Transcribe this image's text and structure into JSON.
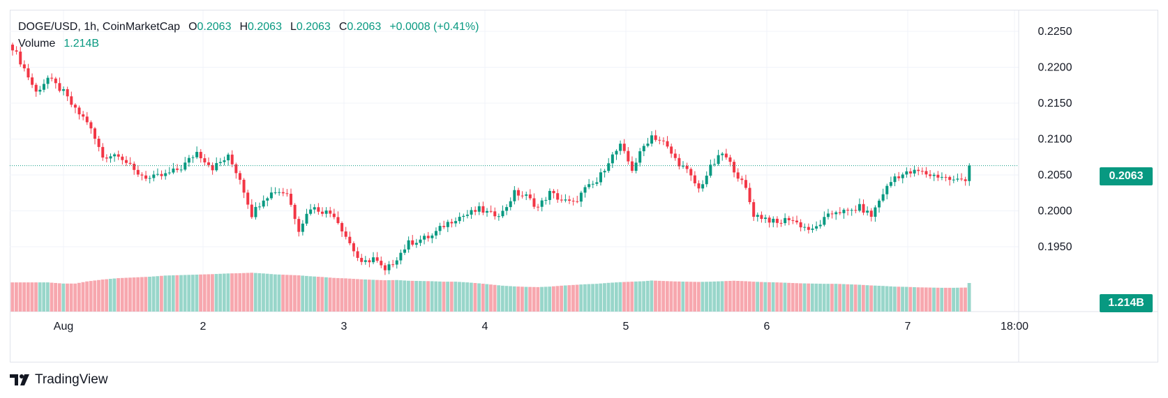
{
  "header": {
    "symbol": "DOGE/USD, 1h, CoinMarketCap",
    "open_label": "O",
    "open_value": "0.2063",
    "high_label": "H",
    "high_value": "0.2063",
    "low_label": "L",
    "low_value": "0.2063",
    "close_label": "C",
    "close_value": "0.2063",
    "change": "+0.0008 (+0.41%)",
    "volume_label": "Volume",
    "volume_value": "1.214B"
  },
  "price_axis": {
    "ticks": [
      "0.2250",
      "0.2200",
      "0.2150",
      "0.2100",
      "0.2050",
      "0.2000",
      "0.1950"
    ],
    "current_price_tag": "0.2063",
    "current_volume_tag": "1.214B"
  },
  "time_axis": {
    "ticks": [
      "Aug",
      "2",
      "3",
      "4",
      "5",
      "6",
      "7",
      "18:00"
    ]
  },
  "footer": {
    "brand": "TradingView",
    "logo": "tradingview-logo-icon"
  },
  "colors": {
    "up": "#089981",
    "down": "#f23645",
    "volume_up": "#98d6ca",
    "volume_down": "#f7a7ae",
    "grid": "#f0f3fa",
    "price_line": "#089981"
  },
  "chart_data": {
    "type": "candlestick",
    "interval": "1h",
    "price_range": [
      0.1925,
      0.2265
    ],
    "volume_range_B": [
      0,
      1.6
    ],
    "current_price": 0.2063,
    "current_volume_B": 1.214,
    "anchors": [
      [
        0,
        0.2228,
        1.24
      ],
      [
        3,
        0.2198,
        1.24
      ],
      [
        6,
        0.2165,
        1.24
      ],
      [
        9,
        0.2185,
        1.24
      ],
      [
        13,
        0.2165,
        1.19
      ],
      [
        16,
        0.214,
        1.19
      ],
      [
        19,
        0.2125,
        1.28
      ],
      [
        23,
        0.2075,
        1.36
      ],
      [
        27,
        0.208,
        1.42
      ],
      [
        31,
        0.2055,
        1.45
      ],
      [
        35,
        0.2045,
        1.48
      ],
      [
        39,
        0.205,
        1.53
      ],
      [
        43,
        0.206,
        1.55
      ],
      [
        47,
        0.2082,
        1.57
      ],
      [
        51,
        0.206,
        1.59
      ],
      [
        55,
        0.2075,
        1.62
      ],
      [
        58,
        0.2045,
        1.63
      ],
      [
        61,
        0.1995,
        1.65
      ],
      [
        64,
        0.2018,
        1.62
      ],
      [
        67,
        0.2028,
        1.58
      ],
      [
        70,
        0.2025,
        1.56
      ],
      [
        73,
        0.1975,
        1.54
      ],
      [
        76,
        0.2005,
        1.5
      ],
      [
        79,
        0.2,
        1.47
      ],
      [
        82,
        0.1995,
        1.43
      ],
      [
        85,
        0.1965,
        1.41
      ],
      [
        87,
        0.1945,
        1.39
      ],
      [
        89,
        0.1925,
        1.37
      ],
      [
        92,
        0.1935,
        1.35
      ],
      [
        95,
        0.1915,
        1.33
      ],
      [
        98,
        0.1935,
        1.34
      ],
      [
        101,
        0.1955,
        1.31
      ],
      [
        104,
        0.196,
        1.3
      ],
      [
        107,
        0.1965,
        1.29
      ],
      [
        110,
        0.198,
        1.27
      ],
      [
        113,
        0.199,
        1.27
      ],
      [
        116,
        0.1995,
        1.24
      ],
      [
        119,
        0.2002,
        1.2
      ],
      [
        122,
        0.1995,
        1.15
      ],
      [
        125,
        0.1998,
        1.1
      ],
      [
        128,
        0.2025,
        1.07
      ],
      [
        131,
        0.202,
        1.05
      ],
      [
        134,
        0.2005,
        1.04
      ],
      [
        137,
        0.2025,
        1.06
      ],
      [
        140,
        0.2015,
        1.1
      ],
      [
        143,
        0.201,
        1.13
      ],
      [
        146,
        0.203,
        1.16
      ],
      [
        149,
        0.204,
        1.18
      ],
      [
        152,
        0.207,
        1.22
      ],
      [
        155,
        0.209,
        1.25
      ],
      [
        158,
        0.2058,
        1.27
      ],
      [
        161,
        0.209,
        1.29
      ],
      [
        163,
        0.2105,
        1.32
      ],
      [
        166,
        0.2095,
        1.3
      ],
      [
        169,
        0.2072,
        1.28
      ],
      [
        172,
        0.2055,
        1.27
      ],
      [
        175,
        0.203,
        1.26
      ],
      [
        178,
        0.206,
        1.27
      ],
      [
        181,
        0.208,
        1.29
      ],
      [
        184,
        0.2058,
        1.31
      ],
      [
        187,
        0.203,
        1.29
      ],
      [
        189,
        0.1995,
        1.27
      ],
      [
        192,
        0.199,
        1.25
      ],
      [
        195,
        0.1982,
        1.24
      ],
      [
        198,
        0.199,
        1.22
      ],
      [
        201,
        0.198,
        1.2
      ],
      [
        204,
        0.1972,
        1.19
      ],
      [
        207,
        0.1988,
        1.18
      ],
      [
        210,
        0.2,
        1.18
      ],
      [
        213,
        0.1998,
        1.16
      ],
      [
        216,
        0.2005,
        1.14
      ],
      [
        219,
        0.1993,
        1.11
      ],
      [
        222,
        0.2025,
        1.09
      ],
      [
        225,
        0.2048,
        1.06
      ],
      [
        228,
        0.2052,
        1.05
      ],
      [
        231,
        0.2055,
        1.03
      ],
      [
        234,
        0.205,
        1.02
      ],
      [
        237,
        0.2048,
        1.01
      ],
      [
        240,
        0.2042,
        1.01
      ],
      [
        243,
        0.2045,
        1.02
      ],
      [
        244,
        0.2055,
        1.214
      ]
    ]
  }
}
